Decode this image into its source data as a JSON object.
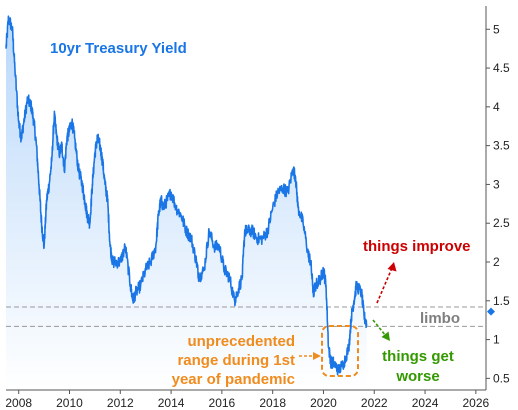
{
  "chart_data": {
    "type": "area",
    "title": "10yr Treasury Yield",
    "xlabel": "",
    "ylabel": "",
    "x_ticks": [
      "2008",
      "2010",
      "2012",
      "2014",
      "2016",
      "2018",
      "2020",
      "2022",
      "2024",
      "2026"
    ],
    "y_ticks": [
      "0.5",
      "1",
      "1.5",
      "2",
      "2.5",
      "3",
      "3.5",
      "4",
      "4.5",
      "5"
    ],
    "xlim": [
      2007.5,
      2026.4
    ],
    "ylim": [
      0.35,
      5.3
    ],
    "grid": false,
    "legend": "none",
    "series": [
      {
        "x": [
          2007.5,
          2007.6,
          2007.75,
          2007.85,
          2008.0,
          2008.1,
          2008.2,
          2008.35,
          2008.5,
          2008.6,
          2008.7,
          2008.8,
          2008.9,
          2009.0,
          2009.1,
          2009.2,
          2009.3,
          2009.4,
          2009.5,
          2009.6,
          2009.7,
          2009.8,
          2009.9,
          2010.0,
          2010.1,
          2010.2,
          2010.35,
          2010.5,
          2010.6,
          2010.7,
          2010.8,
          2010.9,
          2011.0,
          2011.1,
          2011.2,
          2011.3,
          2011.4,
          2011.5,
          2011.6,
          2011.7,
          2011.8,
          2012.0,
          2012.2,
          2012.4,
          2012.5,
          2012.6,
          2012.8,
          2013.0,
          2013.2,
          2013.4,
          2013.5,
          2013.6,
          2013.7,
          2013.85,
          2014.0,
          2014.2,
          2014.4,
          2014.6,
          2014.8,
          2015.0,
          2015.1,
          2015.3,
          2015.5,
          2015.7,
          2015.9,
          2016.1,
          2016.3,
          2016.5,
          2016.6,
          2016.8,
          2016.9,
          2017.0,
          2017.2,
          2017.4,
          2017.6,
          2017.8,
          2018.0,
          2018.2,
          2018.4,
          2018.6,
          2018.8,
          2018.9,
          2019.0,
          2019.2,
          2019.4,
          2019.5,
          2019.6,
          2019.7,
          2019.9,
          2020.0,
          2020.1,
          2020.2,
          2020.3,
          2020.4,
          2020.6,
          2020.8,
          2021.0,
          2021.1,
          2021.2,
          2021.3,
          2021.5,
          2021.6,
          2021.7
        ],
        "y": [
          4.75,
          5.15,
          5.0,
          4.5,
          3.8,
          3.6,
          3.8,
          4.1,
          4.0,
          3.8,
          3.5,
          3.0,
          2.5,
          2.2,
          2.8,
          3.0,
          3.3,
          3.9,
          3.6,
          3.4,
          3.5,
          3.2,
          3.6,
          3.7,
          3.8,
          3.6,
          3.2,
          3.0,
          2.8,
          2.6,
          2.5,
          3.0,
          3.4,
          3.6,
          3.5,
          3.3,
          3.0,
          2.8,
          2.2,
          2.0,
          2.0,
          2.0,
          2.2,
          1.7,
          1.5,
          1.6,
          1.7,
          1.9,
          2.0,
          2.2,
          2.6,
          2.8,
          2.7,
          2.8,
          2.9,
          2.7,
          2.6,
          2.4,
          2.3,
          2.0,
          1.8,
          1.9,
          2.4,
          2.2,
          2.2,
          1.9,
          1.8,
          1.5,
          1.6,
          1.8,
          2.4,
          2.4,
          2.4,
          2.3,
          2.3,
          2.4,
          2.7,
          2.9,
          2.95,
          2.9,
          3.2,
          3.1,
          2.7,
          2.5,
          2.1,
          2.0,
          1.6,
          1.7,
          1.8,
          1.9,
          1.7,
          0.9,
          0.7,
          0.7,
          0.6,
          0.7,
          0.9,
          1.3,
          1.5,
          1.7,
          1.6,
          1.3,
          1.2
        ]
      }
    ],
    "reference_lines": [
      1.42,
      1.17
    ],
    "last_value": 1.36,
    "annotations": {
      "improve": "things improve",
      "worse": "things get worse",
      "limbo": "limbo",
      "pandemic": "unprecedented range during 1st year of pandemic"
    },
    "colors": {
      "line": "#1a75e6",
      "fill_top": "#b9d8fa",
      "improve": "#cc0000",
      "worse": "#339900",
      "limbo": "#7f7f7f",
      "pandemic": "#f08c1e",
      "reference": "#999999"
    }
  }
}
